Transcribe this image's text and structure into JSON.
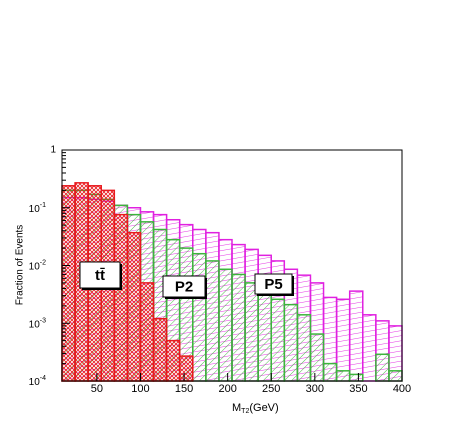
{
  "chart_data": {
    "type": "histogram",
    "x_label": {
      "main": "M",
      "sub": "T2",
      "unit": "(GeV)"
    },
    "y_label": "Fraction of Events",
    "log_y": true,
    "bins": [
      10,
      25,
      40,
      55,
      70,
      85,
      100,
      115,
      130,
      145,
      160,
      175,
      190,
      205,
      220,
      235,
      250,
      265,
      280,
      295,
      310,
      325,
      340,
      355,
      370,
      385,
      400
    ],
    "series": [
      {
        "name": "tt̄",
        "color": "#e8191d",
        "values": [
          0.24,
          0.27,
          0.24,
          0.2,
          0.076,
          0.037,
          0.005,
          0.0012,
          0.0005,
          0.00027,
          null,
          null,
          null,
          null,
          null,
          null,
          null,
          null,
          null,
          null,
          null,
          null,
          null,
          null,
          null,
          null
        ]
      },
      {
        "name": "P2",
        "color": "#3cb43c",
        "values": [
          0.2,
          0.2,
          0.17,
          0.14,
          0.11,
          0.076,
          0.057,
          0.042,
          0.028,
          0.02,
          0.016,
          0.012,
          0.0086,
          0.007,
          0.005,
          0.0036,
          0.0026,
          0.0021,
          0.0014,
          0.00065,
          0.0002,
          0.00015,
          0.00013,
          0.0001,
          0.00029,
          0.00015
        ]
      },
      {
        "name": "P5",
        "color": "#e020e0",
        "values": [
          0.15,
          0.15,
          0.14,
          0.13,
          0.11,
          0.1,
          0.085,
          0.076,
          0.062,
          0.051,
          0.042,
          0.037,
          0.028,
          0.023,
          0.019,
          0.015,
          0.012,
          0.0086,
          0.0068,
          0.005,
          0.0028,
          0.0026,
          0.0036,
          0.0014,
          0.0011,
          0.0009
        ]
      }
    ],
    "xlim": [
      10,
      400
    ],
    "xticks": [
      50,
      100,
      150,
      200,
      250,
      300,
      350,
      400
    ],
    "ylim": [
      0.0001,
      1
    ],
    "yticks": [
      {
        "value": 0.0001,
        "label": "10",
        "exponent": "-4"
      },
      {
        "value": 0.001,
        "label": "10",
        "exponent": "-3"
      },
      {
        "value": 0.01,
        "label": "10",
        "exponent": "-2"
      },
      {
        "value": 0.1,
        "label": "10",
        "exponent": "-1"
      },
      1
    ]
  }
}
